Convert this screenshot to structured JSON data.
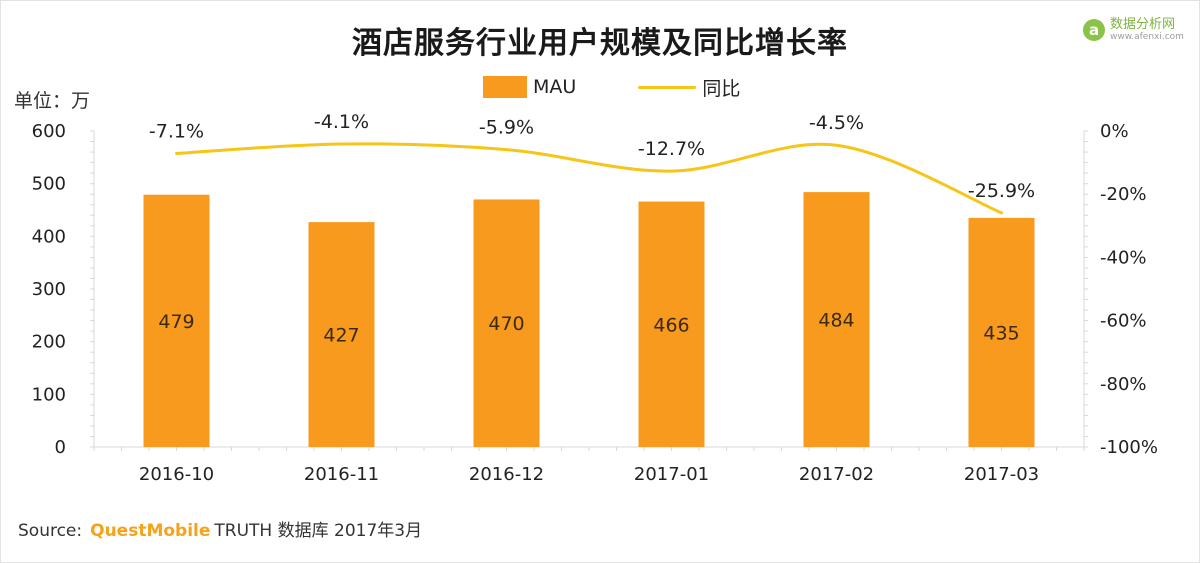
{
  "title": "酒店服务行业用户规模及同比增长率",
  "unit_label": "单位：万",
  "legend": {
    "bar_label": "MAU",
    "line_label": "同比"
  },
  "watermark": {
    "logo": "a",
    "main": "数据分析网",
    "sub": "www.afenxi.com"
  },
  "source": {
    "prefix": "Source:",
    "brand": "QuestMobile",
    "suffix": "TRUTH 数据库 2017年3月"
  },
  "colors": {
    "bar": "#f79a1e",
    "line": "#f5c518",
    "grid": "#d9d9d9"
  },
  "chart_data": {
    "type": "bar",
    "categories": [
      "2016-10",
      "2016-11",
      "2016-12",
      "2017-01",
      "2017-02",
      "2017-03"
    ],
    "series": [
      {
        "name": "MAU",
        "type": "bar",
        "axis": "left",
        "values": [
          479,
          427,
          470,
          466,
          484,
          435
        ],
        "labels": [
          "479",
          "427",
          "470",
          "466",
          "484",
          "435"
        ]
      },
      {
        "name": "同比",
        "type": "line",
        "axis": "right",
        "values": [
          -7.1,
          -4.1,
          -5.9,
          -12.7,
          -4.5,
          -25.9
        ],
        "labels": [
          "-7.1%",
          "-4.1%",
          "-5.9%",
          "-12.7%",
          "-4.5%",
          "-25.9%"
        ]
      }
    ],
    "ylim": [
      0,
      600
    ],
    "y_ticks": [
      "0",
      "100",
      "200",
      "300",
      "400",
      "500",
      "600"
    ],
    "y2lim": [
      -100,
      0
    ],
    "y2_ticks": [
      "-100%",
      "-80%",
      "-60%",
      "-40%",
      "-20%",
      "0%"
    ],
    "grid": false,
    "legend_position": "top-center"
  }
}
